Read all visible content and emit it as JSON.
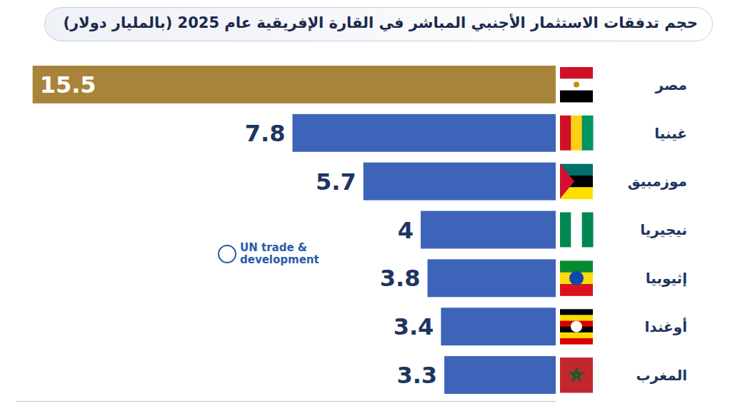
{
  "chart_data": {
    "type": "bar",
    "orientation": "horizontal",
    "title": "حجم تدفقات الاستثمار الأجنبي المباشر في القارة الإفريقية عام 2025 (بالمليار دولار)",
    "annotation": "UN trade & development",
    "categories": [
      "مصر",
      "غينيا",
      "موزمبيق",
      "نيجيريا",
      "إثيوبيا",
      "أوغندا",
      "المغرب"
    ],
    "values": [
      15.5,
      7.8,
      5.7,
      4,
      3.8,
      3.4,
      3.3
    ],
    "colors": [
      "#a8843a",
      "#3d64b8",
      "#3d64b8",
      "#3d64b8",
      "#3d64b8",
      "#3d64b8",
      "#3d64b8"
    ],
    "xlim": [
      0,
      16
    ],
    "data_labels": true,
    "tick_labels": false,
    "grid": false
  }
}
